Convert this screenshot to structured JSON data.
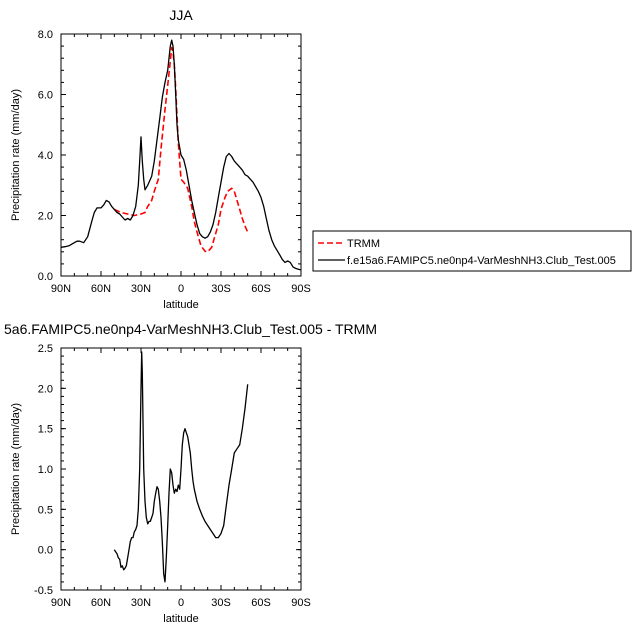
{
  "chart_data": [
    {
      "type": "line",
      "title": "JJA",
      "xlabel": "latitude",
      "ylabel": "Precipitation rate (mm/day)",
      "xlim": [
        90,
        -90
      ],
      "ylim": [
        0,
        8
      ],
      "x_ticks": [
        90,
        60,
        30,
        0,
        -30,
        -60,
        -90
      ],
      "x_tick_labels": [
        "90N",
        "60N",
        "30N",
        "0",
        "30S",
        "60S",
        "90S"
      ],
      "y_ticks": [
        0,
        2,
        4,
        6,
        8
      ],
      "y_tick_labels": [
        "0.0",
        "2.0",
        "4.0",
        "6.0",
        "8.0"
      ],
      "legend_position": "right",
      "series": [
        {
          "name": "TRMM",
          "color": "#ff0000",
          "style": "dashed",
          "x": [
            50,
            45,
            40,
            35,
            30,
            27,
            25,
            22,
            20,
            17,
            15,
            12,
            10,
            8,
            7,
            6,
            5,
            4,
            2,
            0,
            -2,
            -5,
            -8,
            -10,
            -13,
            -15,
            -18,
            -20,
            -23,
            -25,
            -28,
            -30,
            -33,
            -35,
            -38,
            -40,
            -42,
            -44,
            -46,
            -48,
            -50
          ],
          "y": [
            2.2,
            2.1,
            2.05,
            2.0,
            2.05,
            2.1,
            2.3,
            2.5,
            2.8,
            3.2,
            4.2,
            5.5,
            6.3,
            7.1,
            7.55,
            7.4,
            7.0,
            6.2,
            4.4,
            3.2,
            3.1,
            2.9,
            2.3,
            1.8,
            1.3,
            1.0,
            0.82,
            0.8,
            0.95,
            1.25,
            1.7,
            2.2,
            2.6,
            2.8,
            2.9,
            2.8,
            2.5,
            2.2,
            1.9,
            1.65,
            1.45
          ]
        },
        {
          "name": "f.e15a6.FAMIPC5.ne0np4-VarMeshNH3.Club_Test.005",
          "color": "#000000",
          "style": "solid",
          "x": [
            90,
            87,
            84,
            82,
            80,
            78,
            76,
            73,
            70,
            67,
            65,
            63,
            60,
            58,
            56,
            54,
            52,
            50,
            48,
            46,
            44,
            42,
            40,
            38,
            36,
            34,
            32,
            31,
            30,
            29,
            28,
            27,
            25,
            22,
            20,
            18,
            16,
            14,
            12,
            10,
            9,
            8,
            7,
            6,
            5,
            4,
            3,
            2,
            0,
            -2,
            -4,
            -6,
            -8,
            -10,
            -12,
            -14,
            -16,
            -18,
            -20,
            -22,
            -24,
            -26,
            -28,
            -30,
            -32,
            -34,
            -36,
            -38,
            -40,
            -42,
            -44,
            -46,
            -48,
            -50,
            -52,
            -54,
            -56,
            -58,
            -60,
            -62,
            -64,
            -66,
            -68,
            -70,
            -72,
            -74,
            -76,
            -78,
            -80,
            -82,
            -84,
            -86,
            -88,
            -90
          ],
          "y": [
            0.95,
            0.97,
            1.0,
            1.05,
            1.1,
            1.15,
            1.15,
            1.1,
            1.3,
            1.8,
            2.1,
            2.25,
            2.25,
            2.35,
            2.5,
            2.45,
            2.3,
            2.2,
            2.1,
            2.05,
            1.95,
            1.85,
            1.9,
            1.85,
            2.0,
            2.3,
            3.0,
            3.8,
            4.6,
            3.8,
            3.2,
            2.85,
            3.0,
            3.3,
            3.8,
            4.5,
            5.2,
            5.9,
            6.4,
            6.8,
            7.2,
            7.6,
            7.8,
            7.6,
            7.0,
            6.0,
            5.0,
            4.5,
            4.0,
            3.85,
            3.5,
            3.0,
            2.5,
            2.1,
            1.7,
            1.4,
            1.3,
            1.25,
            1.3,
            1.45,
            1.7,
            2.1,
            2.6,
            3.1,
            3.6,
            3.95,
            4.05,
            3.95,
            3.8,
            3.7,
            3.6,
            3.5,
            3.35,
            3.3,
            3.2,
            3.1,
            2.95,
            2.8,
            2.6,
            2.3,
            1.9,
            1.5,
            1.2,
            1.0,
            0.85,
            0.7,
            0.55,
            0.45,
            0.5,
            0.45,
            0.3,
            0.25,
            0.22,
            0.2
          ]
        }
      ]
    },
    {
      "type": "line",
      "title": "5a6.FAMIPC5.ne0np4-VarMeshNH3.Club_Test.005 - TRMM",
      "xlabel": "latitude",
      "ylabel": "Precipitation rate (mm/day)",
      "xlim": [
        90,
        -90
      ],
      "ylim": [
        -0.5,
        2.5
      ],
      "x_ticks": [
        90,
        60,
        30,
        0,
        -30,
        -60,
        -90
      ],
      "x_tick_labels": [
        "90N",
        "60N",
        "30N",
        "0",
        "30S",
        "60S",
        "90S"
      ],
      "y_ticks": [
        -0.5,
        0,
        0.5,
        1,
        1.5,
        2,
        2.5
      ],
      "y_tick_labels": [
        "-0.5",
        "0.0",
        "0.5",
        "1.0",
        "1.5",
        "2.0",
        "2.5"
      ],
      "series": [
        {
          "color": "#000000",
          "style": "solid",
          "x": [
            50,
            48,
            47,
            46,
            45,
            44,
            43,
            42,
            41,
            40,
            39,
            38,
            37,
            36,
            35,
            34,
            33,
            32,
            31,
            30,
            29.5,
            29,
            28.5,
            28,
            27,
            26,
            25,
            24,
            23,
            22,
            21,
            20,
            19,
            18,
            17,
            16,
            15,
            14,
            13,
            12,
            11,
            10,
            9,
            8,
            7,
            6,
            5,
            4,
            3,
            2,
            1,
            0,
            -1,
            -2,
            -3,
            -4,
            -5,
            -6,
            -7,
            -8,
            -9,
            -10,
            -12,
            -14,
            -16,
            -18,
            -20,
            -22,
            -24,
            -26,
            -28,
            -30,
            -32,
            -34,
            -36,
            -38,
            -40,
            -42,
            -44,
            -46,
            -48,
            -50
          ],
          "y": [
            0.0,
            -0.05,
            -0.1,
            -0.12,
            -0.22,
            -0.2,
            -0.25,
            -0.23,
            -0.2,
            -0.1,
            0.0,
            0.1,
            0.15,
            0.15,
            0.22,
            0.25,
            0.3,
            0.5,
            1.0,
            2.0,
            2.45,
            2.2,
            1.6,
            1.0,
            0.6,
            0.4,
            0.32,
            0.35,
            0.35,
            0.4,
            0.45,
            0.6,
            0.7,
            0.78,
            0.75,
            0.6,
            0.4,
            0.1,
            -0.3,
            -0.4,
            -0.1,
            0.3,
            0.7,
            1.0,
            0.95,
            0.8,
            0.7,
            0.75,
            0.72,
            0.8,
            0.75,
            1.0,
            1.3,
            1.45,
            1.5,
            1.45,
            1.4,
            1.3,
            1.2,
            1.0,
            0.85,
            0.75,
            0.6,
            0.5,
            0.42,
            0.35,
            0.3,
            0.25,
            0.2,
            0.15,
            0.15,
            0.2,
            0.3,
            0.55,
            0.8,
            1.0,
            1.2,
            1.25,
            1.3,
            1.5,
            1.75,
            2.05
          ]
        }
      ]
    }
  ]
}
